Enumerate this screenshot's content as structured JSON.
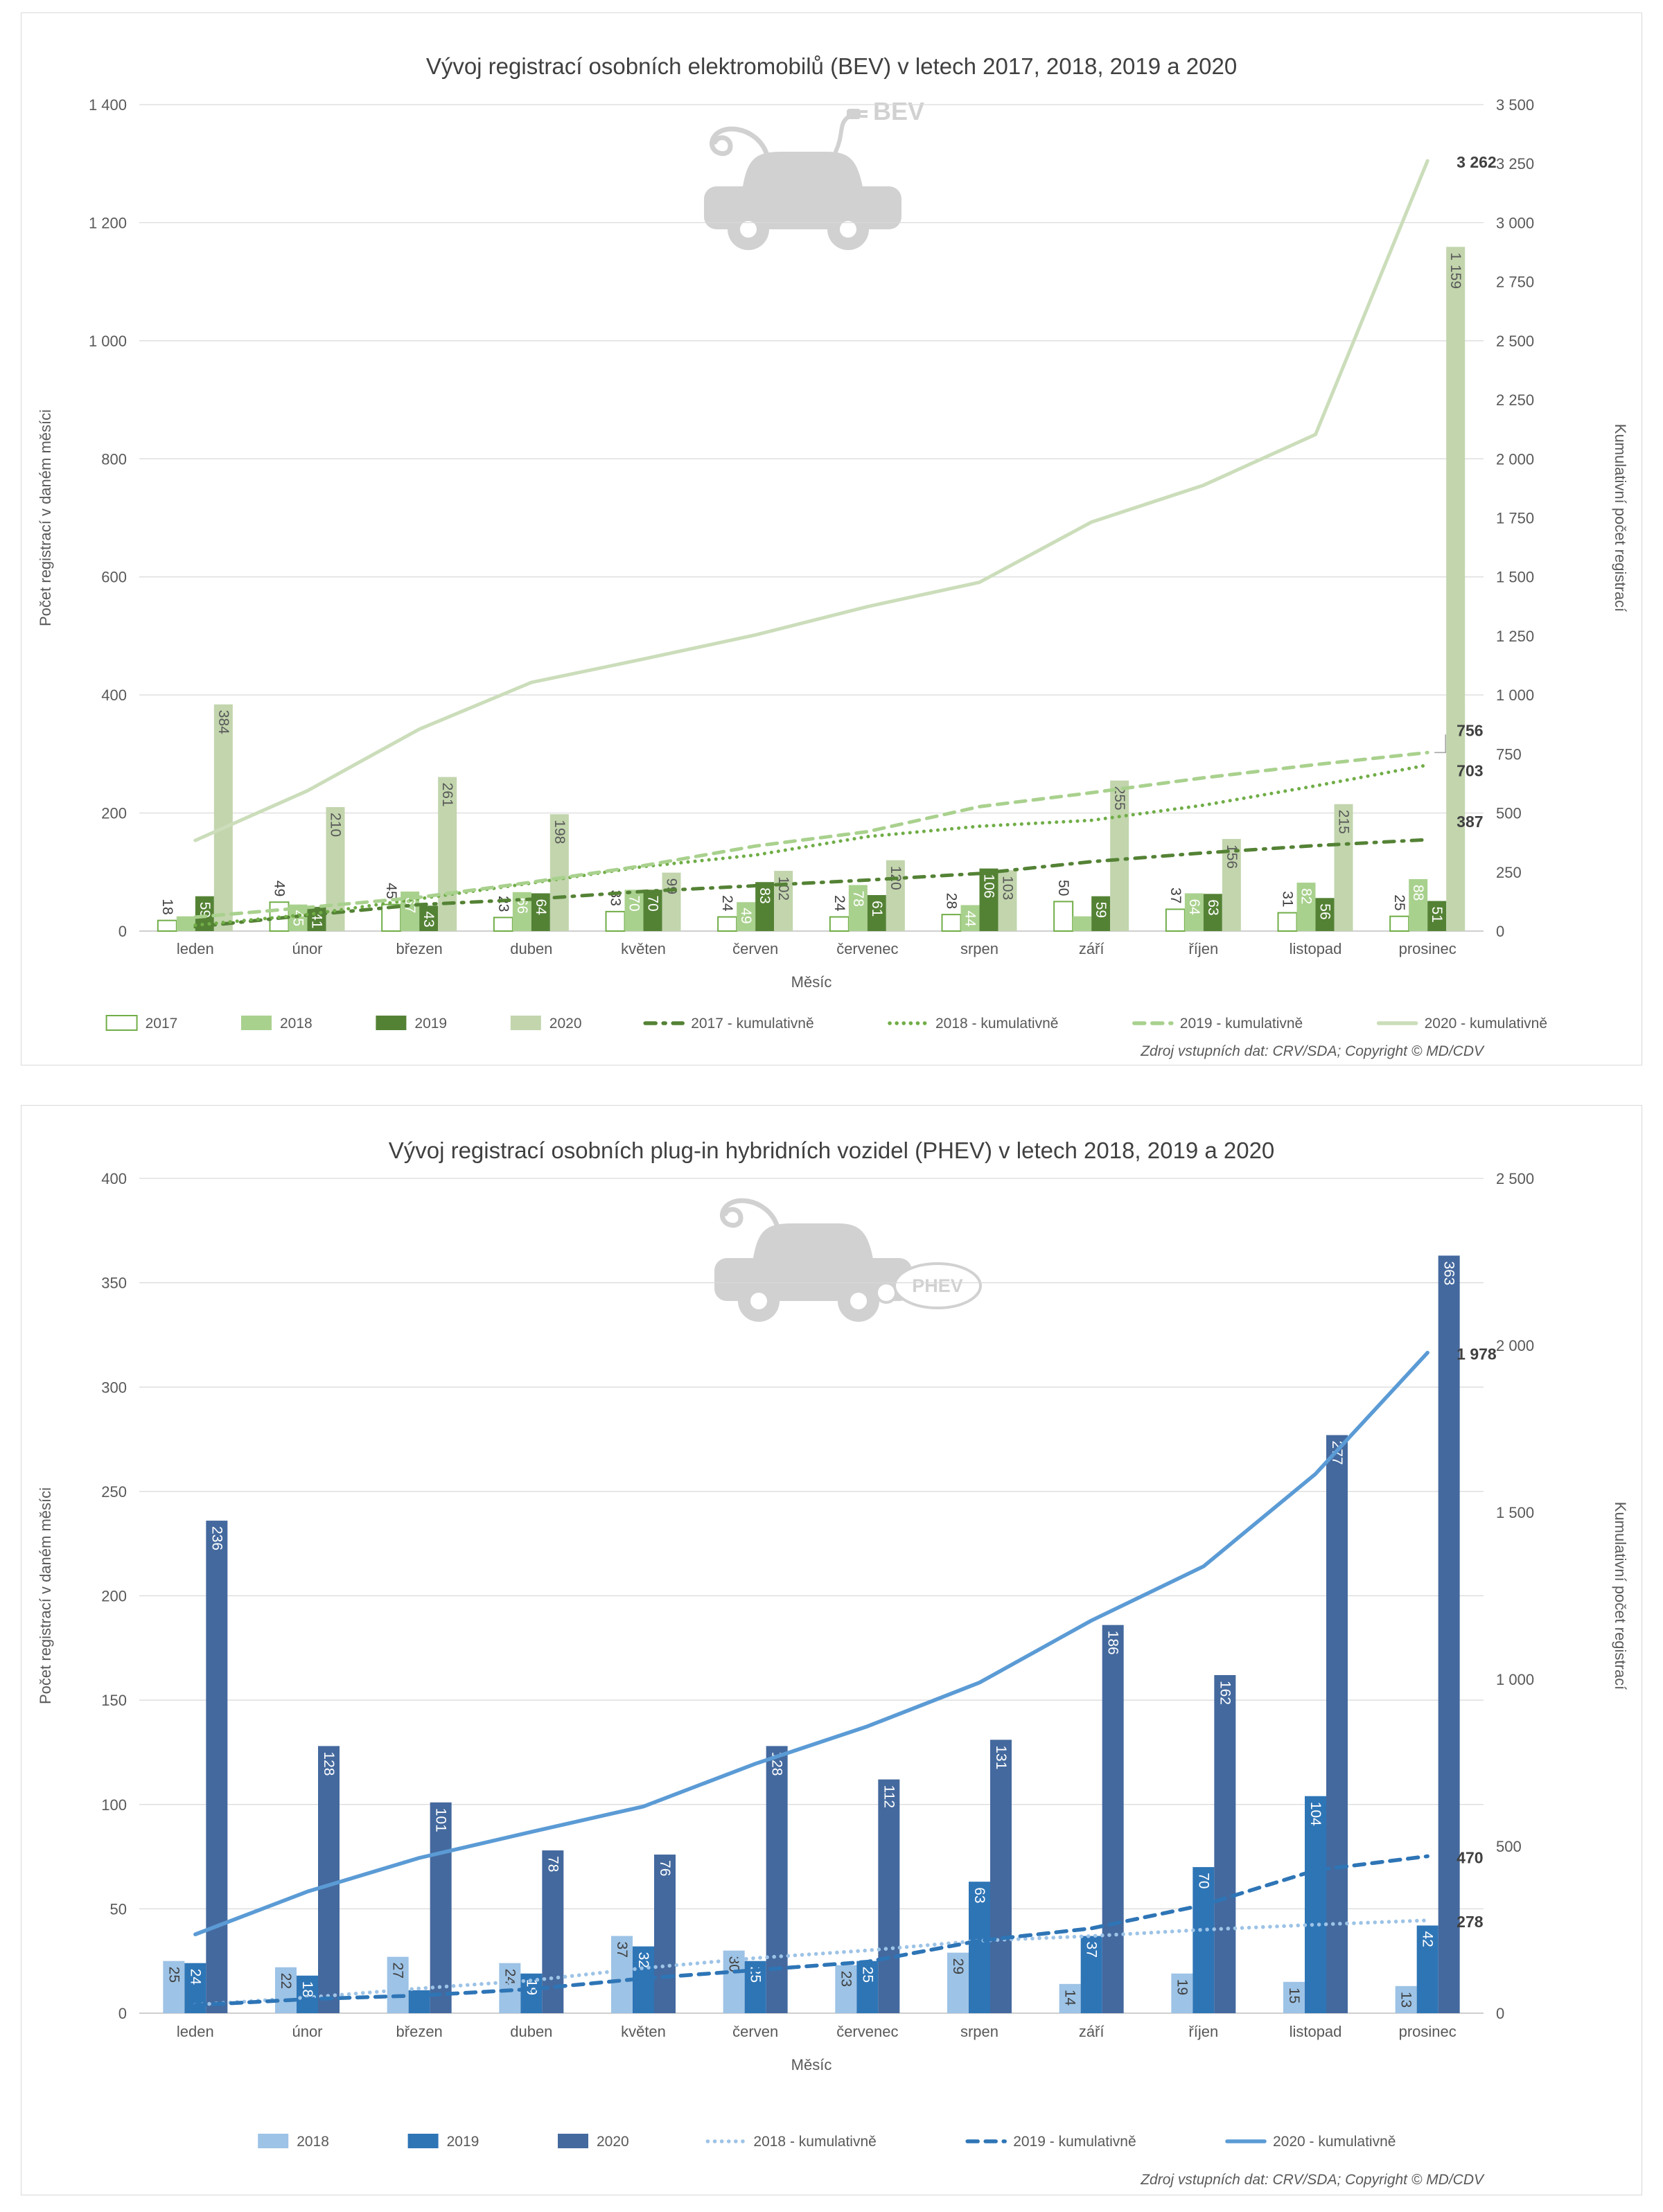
{
  "chart_data": [
    {
      "type": "bar-line-combo",
      "title": "Vývoj registrací osobních elektromobilů (BEV) v letech 2017, 2018, 2019 a 2020",
      "watermark": "BEV",
      "xlabel": "Měsíc",
      "categories": [
        "leden",
        "únor",
        "březen",
        "duben",
        "květen",
        "červen",
        "červenec",
        "srpen",
        "září",
        "říjen",
        "listopad",
        "prosinec"
      ],
      "left_axis": {
        "title": "Počet registrací v daném měsíci",
        "min": 0,
        "max": 1400,
        "step": 200
      },
      "right_axis": {
        "title": "Kumulativní počet registrací",
        "min": 0,
        "max": 3500,
        "step": 250
      },
      "grid": "horizontal",
      "legend_position": "bottom",
      "bar_series": [
        {
          "name": "2017",
          "values": [
            18,
            49,
            45,
            23,
            33,
            24,
            24,
            28,
            50,
            37,
            31,
            25
          ],
          "fill": "#ffffff",
          "stroke": "#70ad47",
          "label_color": "#404040",
          "label_pos": "outside"
        },
        {
          "name": "2018",
          "values": [
            25,
            45,
            67,
            66,
            70,
            49,
            78,
            44,
            25,
            64,
            82,
            88
          ],
          "fill": "#a9d18e",
          "label_color": "#ffffff",
          "label_pos": "inside",
          "hidden_labels": [
            0,
            8
          ]
        },
        {
          "name": "2019",
          "values": [
            59,
            41,
            43,
            64,
            70,
            83,
            61,
            106,
            59,
            63,
            56,
            51
          ],
          "fill": "#548235",
          "label_color": "#ffffff",
          "label_pos": "inside"
        },
        {
          "name": "2020",
          "values": [
            384,
            210,
            261,
            198,
            99,
            102,
            120,
            103,
            255,
            156,
            215,
            1159
          ],
          "fill": "#c2d5ad",
          "label_color": "#595959",
          "label_pos": "inside"
        }
      ],
      "line_series": [
        {
          "name": "2017 - kumulativně",
          "values": [
            18,
            67,
            112,
            135,
            168,
            192,
            216,
            244,
            294,
            331,
            362,
            387
          ],
          "color": "#548235",
          "dash": "dashdot",
          "end_label": "387",
          "end_label_dy": -26
        },
        {
          "name": "2018 - kumulativně",
          "values": [
            25,
            70,
            137,
            203,
            273,
            322,
            400,
            444,
            469,
            533,
            615,
            703
          ],
          "color": "#70ad47",
          "dash": "dot",
          "end_label": "703",
          "end_label_dy": 8
        },
        {
          "name": "2019 - kumulativně",
          "values": [
            59,
            100,
            143,
            207,
            277,
            360,
            421,
            527,
            586,
            649,
            705,
            756
          ],
          "color": "#a9d18e",
          "dash": "dash",
          "end_label": "756",
          "end_label_dy": -32,
          "callout": true
        },
        {
          "name": "2020 - kumulativně",
          "values": [
            384,
            594,
            855,
            1053,
            1152,
            1254,
            1374,
            1477,
            1732,
            1888,
            2103,
            3262
          ],
          "color": "#cbddba",
          "dash": "solid",
          "end_label": "3 262",
          "end_label_dy": 2
        }
      ],
      "footer": "Zdroj vstupních dat: CRV/SDA; Copyright © MD/CDV"
    },
    {
      "type": "bar-line-combo",
      "title": "Vývoj registrací osobních plug-in hybridních vozidel (PHEV) v letech 2018, 2019 a 2020",
      "watermark": "PHEV",
      "xlabel": "Měsíc",
      "categories": [
        "leden",
        "únor",
        "březen",
        "duben",
        "květen",
        "červen",
        "červenec",
        "srpen",
        "září",
        "říjen",
        "listopad",
        "prosinec"
      ],
      "left_axis": {
        "title": "Počet registrací v daném měsíci",
        "min": 0,
        "max": 400,
        "step": 50
      },
      "right_axis": {
        "title": "Kumulativní počet registrací",
        "min": 0,
        "max": 2500,
        "step": 500
      },
      "grid": "horizontal",
      "legend_position": "bottom",
      "bar_series": [
        {
          "name": "2018",
          "values": [
            25,
            22,
            27,
            24,
            37,
            30,
            23,
            29,
            14,
            19,
            15,
            13
          ],
          "fill": "#9dc3e6",
          "label_color": "#404040",
          "label_pos": "inside"
        },
        {
          "name": "2019",
          "values": [
            24,
            18,
            11,
            19,
            32,
            25,
            25,
            63,
            37,
            70,
            104,
            42
          ],
          "fill": "#2e75b6",
          "label_color": "#ffffff",
          "label_pos": "inside",
          "hidden_labels": [
            2
          ]
        },
        {
          "name": "2020",
          "values": [
            236,
            128,
            101,
            78,
            76,
            128,
            112,
            131,
            186,
            162,
            277,
            363
          ],
          "fill": "#44699e",
          "label_color": "#ffffff",
          "label_pos": "inside"
        }
      ],
      "line_series": [
        {
          "name": "2018 - kumulativně",
          "values": [
            25,
            47,
            74,
            98,
            135,
            165,
            188,
            217,
            231,
            250,
            265,
            278
          ],
          "color": "#9dc3e6",
          "dash": "dot",
          "end_label": "278",
          "end_label_dy": 2
        },
        {
          "name": "2019 - kumulativně",
          "values": [
            24,
            42,
            53,
            72,
            104,
            129,
            154,
            217,
            254,
            324,
            428,
            470
          ],
          "color": "#2e75b6",
          "dash": "dash",
          "end_label": "470",
          "end_label_dy": 2
        },
        {
          "name": "2020 - kumulativně",
          "values": [
            236,
            364,
            465,
            543,
            619,
            747,
            859,
            990,
            1176,
            1338,
            1615,
            1978
          ],
          "color": "#5b9bd5",
          "dash": "solid",
          "end_label": "1 978",
          "end_label_dy": 2
        }
      ],
      "footer": "Zdroj vstupních dat: CRV/SDA; Copyright © MD/CDV"
    }
  ]
}
